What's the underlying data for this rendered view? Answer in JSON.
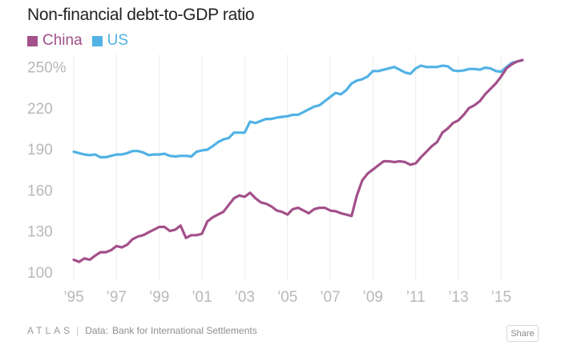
{
  "chart_data": {
    "type": "line",
    "title": "Non-financial debt-to-GDP ratio",
    "xlabel": "",
    "ylabel": "",
    "ylim": [
      97,
      258
    ],
    "xlim": [
      1995,
      2016
    ],
    "yticks": [
      100,
      130,
      160,
      190,
      220,
      250
    ],
    "ytick_labels": [
      "100",
      "130",
      "160",
      "190",
      "220",
      "250%"
    ],
    "xticks": [
      1995,
      1997,
      1999,
      2001,
      2003,
      2005,
      2007,
      2009,
      2011,
      2013,
      2015
    ],
    "xtick_labels": [
      "’95",
      "’97",
      "’99",
      "’01",
      "’03",
      "’05",
      "’07",
      "’09",
      "’11",
      "’13",
      "’15"
    ],
    "series": [
      {
        "name": "China",
        "color": "#a3508b",
        "x": [
          1995.0,
          1995.25,
          1995.5,
          1995.75,
          1996.0,
          1996.25,
          1996.5,
          1996.75,
          1997.0,
          1997.25,
          1997.5,
          1997.75,
          1998.0,
          1998.25,
          1998.5,
          1998.75,
          1999.0,
          1999.25,
          1999.5,
          1999.75,
          2000.0,
          2000.25,
          2000.5,
          2000.75,
          2001.0,
          2001.25,
          2001.5,
          2001.75,
          2002.0,
          2002.25,
          2002.5,
          2002.75,
          2003.0,
          2003.25,
          2003.5,
          2003.75,
          2004.0,
          2004.25,
          2004.5,
          2004.75,
          2005.0,
          2005.25,
          2005.5,
          2005.75,
          2006.0,
          2006.25,
          2006.5,
          2006.75,
          2007.0,
          2007.25,
          2007.5,
          2007.75,
          2008.0,
          2008.25,
          2008.5,
          2008.75,
          2009.0,
          2009.25,
          2009.5,
          2009.75,
          2010.0,
          2010.25,
          2010.5,
          2010.75,
          2011.0,
          2011.25,
          2011.5,
          2011.75,
          2012.0,
          2012.25,
          2012.5,
          2012.75,
          2013.0,
          2013.25,
          2013.5,
          2013.75,
          2014.0,
          2014.25,
          2014.5,
          2014.75,
          2015.0,
          2015.25,
          2015.5,
          2015.75,
          2016.0
        ],
        "values": [
          109,
          107.5,
          110,
          109,
          112,
          114.5,
          114.5,
          116,
          119,
          118,
          120,
          124,
          126,
          127,
          129,
          131,
          133,
          133,
          130,
          131,
          134,
          125,
          127,
          127,
          128,
          137,
          140,
          142,
          144,
          149,
          154,
          156,
          155,
          158,
          154,
          151,
          150,
          148,
          145,
          144,
          142,
          146,
          147,
          145,
          143,
          146,
          147,
          147,
          145,
          144.5,
          143,
          142,
          141,
          156,
          167,
          172,
          175,
          178,
          181,
          181,
          180.5,
          181,
          180.5,
          178.5,
          179.5,
          184,
          188,
          192,
          195,
          202,
          205,
          209,
          211,
          215,
          220,
          222,
          225,
          230,
          234,
          238,
          243,
          249,
          252,
          254,
          255
        ]
      },
      {
        "name": "US",
        "color": "#51b2e5",
        "x": [
          1995.0,
          1995.25,
          1995.5,
          1995.75,
          1996.0,
          1996.25,
          1996.5,
          1996.75,
          1997.0,
          1997.25,
          1997.5,
          1997.75,
          1998.0,
          1998.25,
          1998.5,
          1998.75,
          1999.0,
          1999.25,
          1999.5,
          1999.75,
          2000.0,
          2000.25,
          2000.5,
          2000.75,
          2001.0,
          2001.25,
          2001.5,
          2001.75,
          2002.0,
          2002.25,
          2002.5,
          2002.75,
          2003.0,
          2003.25,
          2003.5,
          2003.75,
          2004.0,
          2004.25,
          2004.5,
          2004.75,
          2005.0,
          2005.25,
          2005.5,
          2005.75,
          2006.0,
          2006.25,
          2006.5,
          2006.75,
          2007.0,
          2007.25,
          2007.5,
          2007.75,
          2008.0,
          2008.25,
          2008.5,
          2008.75,
          2009.0,
          2009.25,
          2009.5,
          2009.75,
          2010.0,
          2010.25,
          2010.5,
          2010.75,
          2011.0,
          2011.25,
          2011.5,
          2011.75,
          2012.0,
          2012.25,
          2012.5,
          2012.75,
          2013.0,
          2013.25,
          2013.5,
          2013.75,
          2014.0,
          2014.25,
          2014.5,
          2014.75,
          2015.0,
          2015.25,
          2015.5,
          2015.75,
          2016.0
        ],
        "values": [
          188,
          187,
          186,
          185.5,
          186,
          184,
          184,
          185,
          186,
          186,
          187,
          188.5,
          188.5,
          187.5,
          185.5,
          186,
          186,
          186.5,
          185,
          184.5,
          185,
          185,
          184.5,
          188,
          189,
          189.5,
          192,
          195,
          197,
          198,
          202,
          202,
          202,
          210,
          209,
          210.5,
          212,
          212,
          213,
          213.5,
          214,
          215,
          215,
          217,
          219,
          221,
          222,
          225,
          228,
          231,
          230,
          233,
          238,
          240,
          241,
          243,
          247,
          247,
          248,
          249,
          250,
          248,
          246,
          245,
          249,
          251,
          250,
          250,
          250,
          251,
          250.5,
          247.5,
          247,
          247.5,
          248.5,
          248.5,
          248,
          249.5,
          249,
          247,
          246.5,
          250,
          253,
          254,
          255
        ]
      }
    ],
    "grid": "vertical",
    "legend": "top-left"
  },
  "footer": {
    "logo": "ATLAS",
    "separator": "|",
    "source_label": "Data:",
    "source": "Bank for International Settlements",
    "share_label": "Share"
  }
}
